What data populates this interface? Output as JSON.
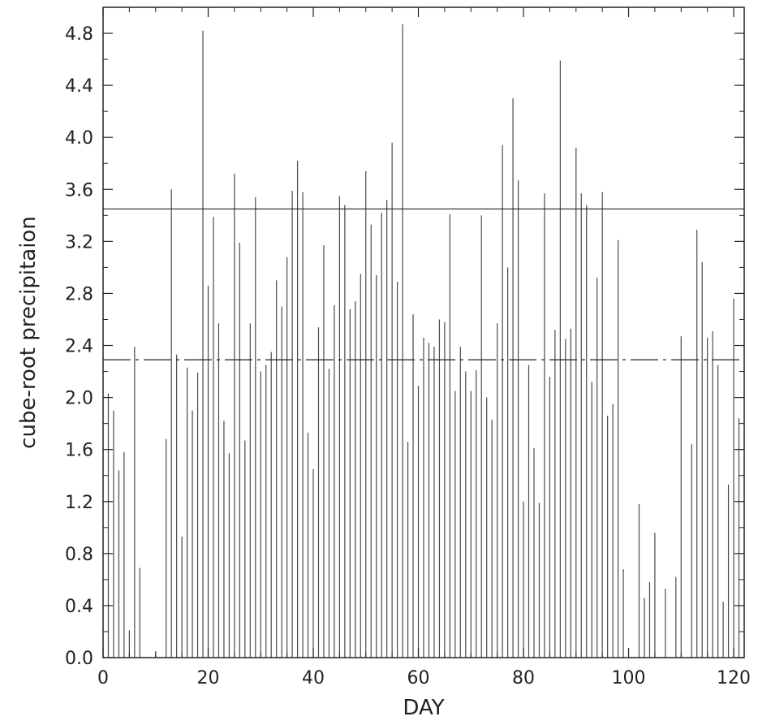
{
  "chart_data": {
    "type": "bar",
    "xlabel": "DAY",
    "ylabel": "cube-root precipitaion",
    "xlim": [
      0,
      122
    ],
    "ylim": [
      0.0,
      5.0
    ],
    "xticks": [
      "0",
      "20",
      "40",
      "60",
      "80",
      "100",
      "120"
    ],
    "yticks": [
      "0.0",
      "0.4",
      "0.8",
      "1.2",
      "1.6",
      "2.0",
      "2.4",
      "2.8",
      "3.2",
      "3.6",
      "4.0",
      "4.4",
      "4.8"
    ],
    "x": [
      1,
      2,
      3,
      4,
      5,
      6,
      7,
      10,
      12,
      13,
      14,
      15,
      16,
      17,
      18,
      19,
      20,
      21,
      22,
      23,
      24,
      25,
      26,
      27,
      28,
      29,
      30,
      31,
      32,
      33,
      34,
      35,
      36,
      37,
      38,
      39,
      40,
      41,
      42,
      43,
      44,
      45,
      46,
      47,
      48,
      49,
      50,
      51,
      52,
      53,
      54,
      55,
      56,
      57,
      58,
      59,
      60,
      61,
      62,
      63,
      64,
      65,
      66,
      67,
      68,
      69,
      70,
      71,
      72,
      73,
      74,
      75,
      76,
      77,
      78,
      79,
      80,
      81,
      82,
      83,
      84,
      85,
      86,
      87,
      88,
      89,
      90,
      91,
      92,
      93,
      94,
      95,
      96,
      97,
      98,
      99,
      102,
      103,
      104,
      105,
      107,
      109,
      110,
      112,
      113,
      114,
      115,
      116,
      117,
      118,
      119,
      120,
      121
    ],
    "values": [
      2.03,
      1.9,
      1.44,
      1.58,
      0.21,
      2.39,
      0.69,
      0.05,
      1.68,
      3.6,
      2.33,
      0.93,
      2.23,
      1.9,
      2.19,
      4.82,
      2.86,
      3.39,
      2.57,
      1.82,
      1.57,
      3.72,
      3.19,
      1.67,
      2.57,
      3.54,
      2.2,
      2.25,
      2.35,
      2.9,
      2.7,
      3.08,
      3.59,
      3.82,
      3.58,
      1.73,
      1.45,
      2.54,
      3.17,
      2.22,
      2.71,
      3.55,
      3.48,
      2.68,
      2.74,
      2.95,
      3.74,
      3.33,
      2.94,
      3.42,
      3.52,
      3.96,
      2.89,
      4.87,
      1.66,
      2.64,
      2.09,
      2.46,
      2.42,
      2.39,
      2.6,
      2.58,
      3.41,
      2.05,
      2.39,
      2.2,
      2.05,
      2.21,
      3.4,
      2.0,
      1.83,
      2.57,
      3.94,
      3.0,
      4.3,
      3.67,
      1.2,
      2.25,
      1.61,
      1.19,
      3.57,
      2.16,
      2.52,
      4.59,
      2.45,
      2.53,
      3.92,
      3.57,
      3.48,
      2.12,
      2.92,
      3.58,
      1.86,
      1.95,
      3.21,
      0.68,
      1.18,
      0.46,
      0.58,
      0.96,
      0.53,
      0.62,
      2.47,
      1.64,
      3.29,
      3.04,
      2.46,
      2.51,
      2.25,
      0.43,
      1.33,
      2.76,
      1.84
    ],
    "reference_lines": [
      {
        "style": "solid",
        "y": 3.45
      },
      {
        "style": "dash-dot",
        "y": 2.29
      }
    ],
    "grid": false,
    "colors": {
      "bars": "#4a4a4a",
      "axes": "#222222"
    }
  }
}
